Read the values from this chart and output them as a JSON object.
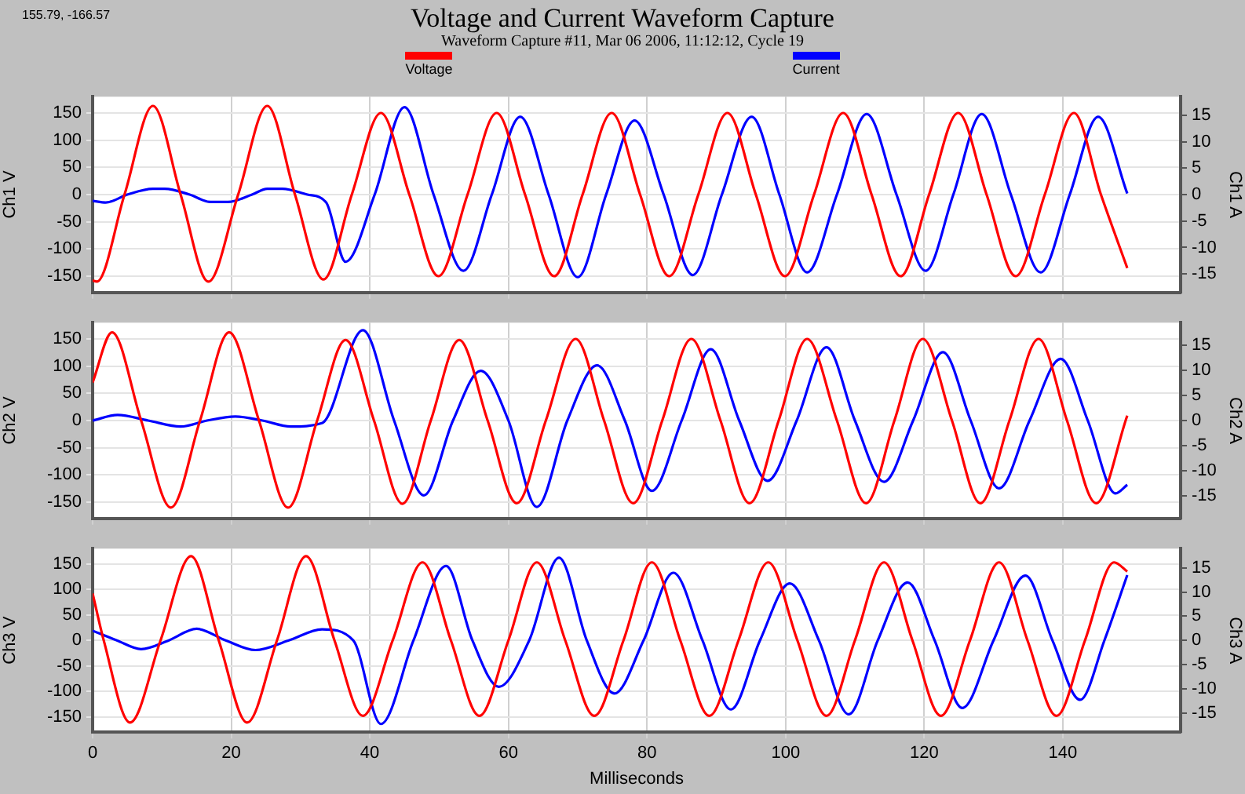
{
  "chart_data": [
    {
      "type": "line",
      "title": "Voltage and Current Waveform Capture",
      "subtitle": "Waveform Capture #11, Mar 06 2006, 11:12:12,  Cycle 19",
      "annotations": [
        "155.79, -166.57"
      ],
      "ylabel": "Ch1 V",
      "y2label": "Ch1 A",
      "legend": "top",
      "grid": true,
      "marker": "none",
      "line_style": "solid",
      "tick_labels": "y",
      "xlim": [
        0,
        157
      ],
      "xticks": [
        0,
        20,
        40,
        60,
        80,
        100,
        120,
        140
      ],
      "ylim": [
        -180,
        180
      ],
      "yticks": [
        -150,
        -100,
        -50,
        0,
        50,
        100,
        150
      ],
      "y2lim": [
        -18.5,
        18.5
      ],
      "y2ticks": [
        -15,
        -10,
        -5,
        0,
        5,
        10,
        15
      ],
      "series": [
        {
          "name": "Voltage",
          "color": "#ff0000",
          "x": [
            0,
            0.6,
            4.6,
            8.7,
            12.7,
            16.7,
            21,
            25.2,
            29.2,
            33.3,
            37.4,
            41.6,
            45.7,
            49.9,
            54.1,
            58.3,
            62.4,
            66.6,
            70.7,
            74.9,
            79,
            83.2,
            87.4,
            91.6,
            95.7,
            99.9,
            104.1,
            108.3,
            112.4,
            116.6,
            120.7,
            124.9,
            129,
            133.2,
            137.4,
            141.6,
            145.5,
            149.3
          ],
          "values": [
            -158,
            -160,
            0,
            163,
            0,
            -160,
            0,
            163,
            0,
            -156,
            0,
            150,
            0,
            -150,
            0,
            150,
            0,
            -150,
            0,
            150,
            0,
            -150,
            0,
            150,
            0,
            -150,
            0,
            150,
            0,
            -150,
            0,
            150,
            0,
            -150,
            0,
            150,
            0,
            -135
          ]
        },
        {
          "name": "Current",
          "color": "#0000ff",
          "axis": "y2",
          "x": [
            0,
            1.9,
            5,
            8.7,
            10.4,
            14,
            17,
            19.5,
            23,
            25.2,
            27.4,
            31,
            33.7,
            36.5,
            40.7,
            45,
            49.2,
            53.5,
            57.6,
            61.7,
            65.8,
            70,
            74.1,
            78.2,
            82.4,
            86.6,
            90.8,
            95.1,
            99.1,
            103.1,
            107.4,
            111.7,
            116,
            120.2,
            124.2,
            128.3,
            132.5,
            136.8,
            141,
            145.1,
            149.3
          ],
          "values": [
            -1.2,
            -1.5,
            0,
            1.1,
            1.1,
            0,
            -1.4,
            -1.4,
            0,
            1.1,
            1.1,
            0,
            -1.5,
            -12.7,
            0,
            16.5,
            0,
            -14.4,
            0,
            14.7,
            0,
            -15.6,
            0,
            14,
            0,
            -15.2,
            0,
            14.7,
            0,
            -14.7,
            0,
            15.2,
            0,
            -14.4,
            0,
            15.2,
            0,
            -14.7,
            0,
            14.7,
            0.2
          ]
        }
      ]
    },
    {
      "type": "line",
      "ylabel": "Ch2 V",
      "y2label": "Ch2 A",
      "grid": true,
      "marker": "none",
      "line_style": "solid",
      "tick_labels": "y",
      "xlim": [
        0,
        157
      ],
      "xticks": [
        0,
        20,
        40,
        60,
        80,
        100,
        120,
        140
      ],
      "ylim": [
        -180,
        180
      ],
      "yticks": [
        -150,
        -100,
        -50,
        0,
        50,
        100,
        150
      ],
      "y2lim": [
        -19.5,
        19.5
      ],
      "y2ticks": [
        -15,
        -10,
        -5,
        0,
        5,
        10,
        15
      ],
      "series": [
        {
          "color": "#ff0000",
          "x": [
            0,
            2.8,
            7,
            11.3,
            15.5,
            19.7,
            24,
            28.2,
            32.4,
            36.5,
            40.6,
            44.7,
            48.8,
            52.9,
            57,
            61.2,
            65.4,
            69.7,
            73.8,
            78,
            82.2,
            86.4,
            90.6,
            94.8,
            99,
            103.1,
            107.4,
            111.6,
            115.7,
            119.8,
            124,
            128.1,
            132.3,
            136.5,
            140.6,
            144.8,
            149.3
          ],
          "values": [
            70,
            162,
            0,
            -160,
            0,
            162,
            0,
            -160,
            0,
            148,
            0,
            -153,
            0,
            148,
            0,
            -152,
            0,
            150,
            0,
            -152,
            0,
            150,
            0,
            -152,
            0,
            150,
            0,
            -152,
            0,
            150,
            0,
            -152,
            0,
            150,
            0,
            -152,
            9
          ]
        },
        {
          "color": "#0000ff",
          "axis": "y2",
          "x": [
            0,
            3.6,
            8,
            12.7,
            16.5,
            20.6,
            24.5,
            28.6,
            33.1,
            39,
            43.5,
            47.8,
            52,
            56,
            60,
            64.1,
            68.5,
            72.8,
            76.8,
            80.7,
            85,
            89.2,
            93.3,
            97.4,
            101.6,
            105.9,
            110,
            114.2,
            118.4,
            122.7,
            126.7,
            130.8,
            135.2,
            139.7,
            143.6,
            147.6,
            149.3
          ],
          "values": [
            0,
            1.1,
            0,
            -1.2,
            0,
            0.8,
            0,
            -1.2,
            -0.5,
            18,
            0,
            -14.9,
            0,
            9.9,
            0,
            -17.2,
            0,
            11,
            0,
            -14,
            0,
            14.2,
            0,
            -12,
            0,
            14.6,
            0,
            -12.2,
            0,
            13.6,
            0,
            -13.5,
            0,
            12.3,
            0,
            -14.5,
            -12.8
          ]
        }
      ]
    },
    {
      "type": "line",
      "ylabel": "Ch3 V",
      "y2label": "Ch3 A",
      "xlabel": "Milliseconds",
      "grid": true,
      "marker": "none",
      "line_style": "solid",
      "xlim": [
        0,
        157
      ],
      "xticks": [
        0,
        20,
        40,
        60,
        80,
        100,
        120,
        140
      ],
      "ylim": [
        -180,
        180
      ],
      "yticks": [
        -150,
        -100,
        -50,
        0,
        50,
        100,
        150
      ],
      "y2lim": [
        -19,
        19
      ],
      "y2ticks": [
        -15,
        -10,
        -5,
        0,
        5,
        10,
        15
      ],
      "series": [
        {
          "color": "#ff0000",
          "x": [
            0,
            1.6,
            5.4,
            9.8,
            14.2,
            18.2,
            22.3,
            26.6,
            30.8,
            34.9,
            39,
            43.3,
            47.6,
            51.7,
            55.8,
            60,
            64.1,
            68.2,
            72.4,
            76.6,
            80.7,
            84.8,
            89,
            93.2,
            97.5,
            101.7,
            105.9,
            110,
            114.2,
            118.3,
            122.4,
            126.6,
            130.8,
            134.9,
            139.1,
            143.2,
            147.4,
            149.3
          ],
          "values": [
            92,
            0,
            -161,
            0,
            165,
            0,
            -161,
            0,
            165,
            0,
            -148,
            0,
            153,
            0,
            -148,
            0,
            153,
            0,
            -148,
            0,
            153,
            0,
            -148,
            0,
            153,
            0,
            -148,
            0,
            153,
            0,
            -148,
            0,
            153,
            0,
            -148,
            0,
            153,
            135
          ]
        },
        {
          "color": "#0000ff",
          "axis": "y2",
          "x": [
            0,
            3.5,
            7,
            11,
            15,
            19.2,
            23.5,
            28.3,
            33.1,
            37.6,
            41.6,
            46.3,
            51,
            54.8,
            58.6,
            63,
            67.3,
            71.3,
            75.3,
            79.5,
            83.8,
            88,
            92.1,
            96.3,
            100.6,
            104.8,
            109.1,
            113.3,
            117.6,
            121.5,
            125.5,
            130,
            134.6,
            138.5,
            142.5,
            146,
            149.3
          ],
          "values": [
            2,
            0,
            -1.8,
            0,
            2.4,
            0,
            -2,
            0,
            2.3,
            0,
            -17.3,
            0,
            15.4,
            0,
            -9.6,
            0,
            17.1,
            0,
            -11,
            0,
            14,
            0,
            -14.3,
            0,
            11.8,
            0,
            -15.3,
            0,
            12,
            0,
            -14,
            0,
            13.4,
            0,
            -12.3,
            0,
            13.5
          ]
        }
      ]
    }
  ]
}
